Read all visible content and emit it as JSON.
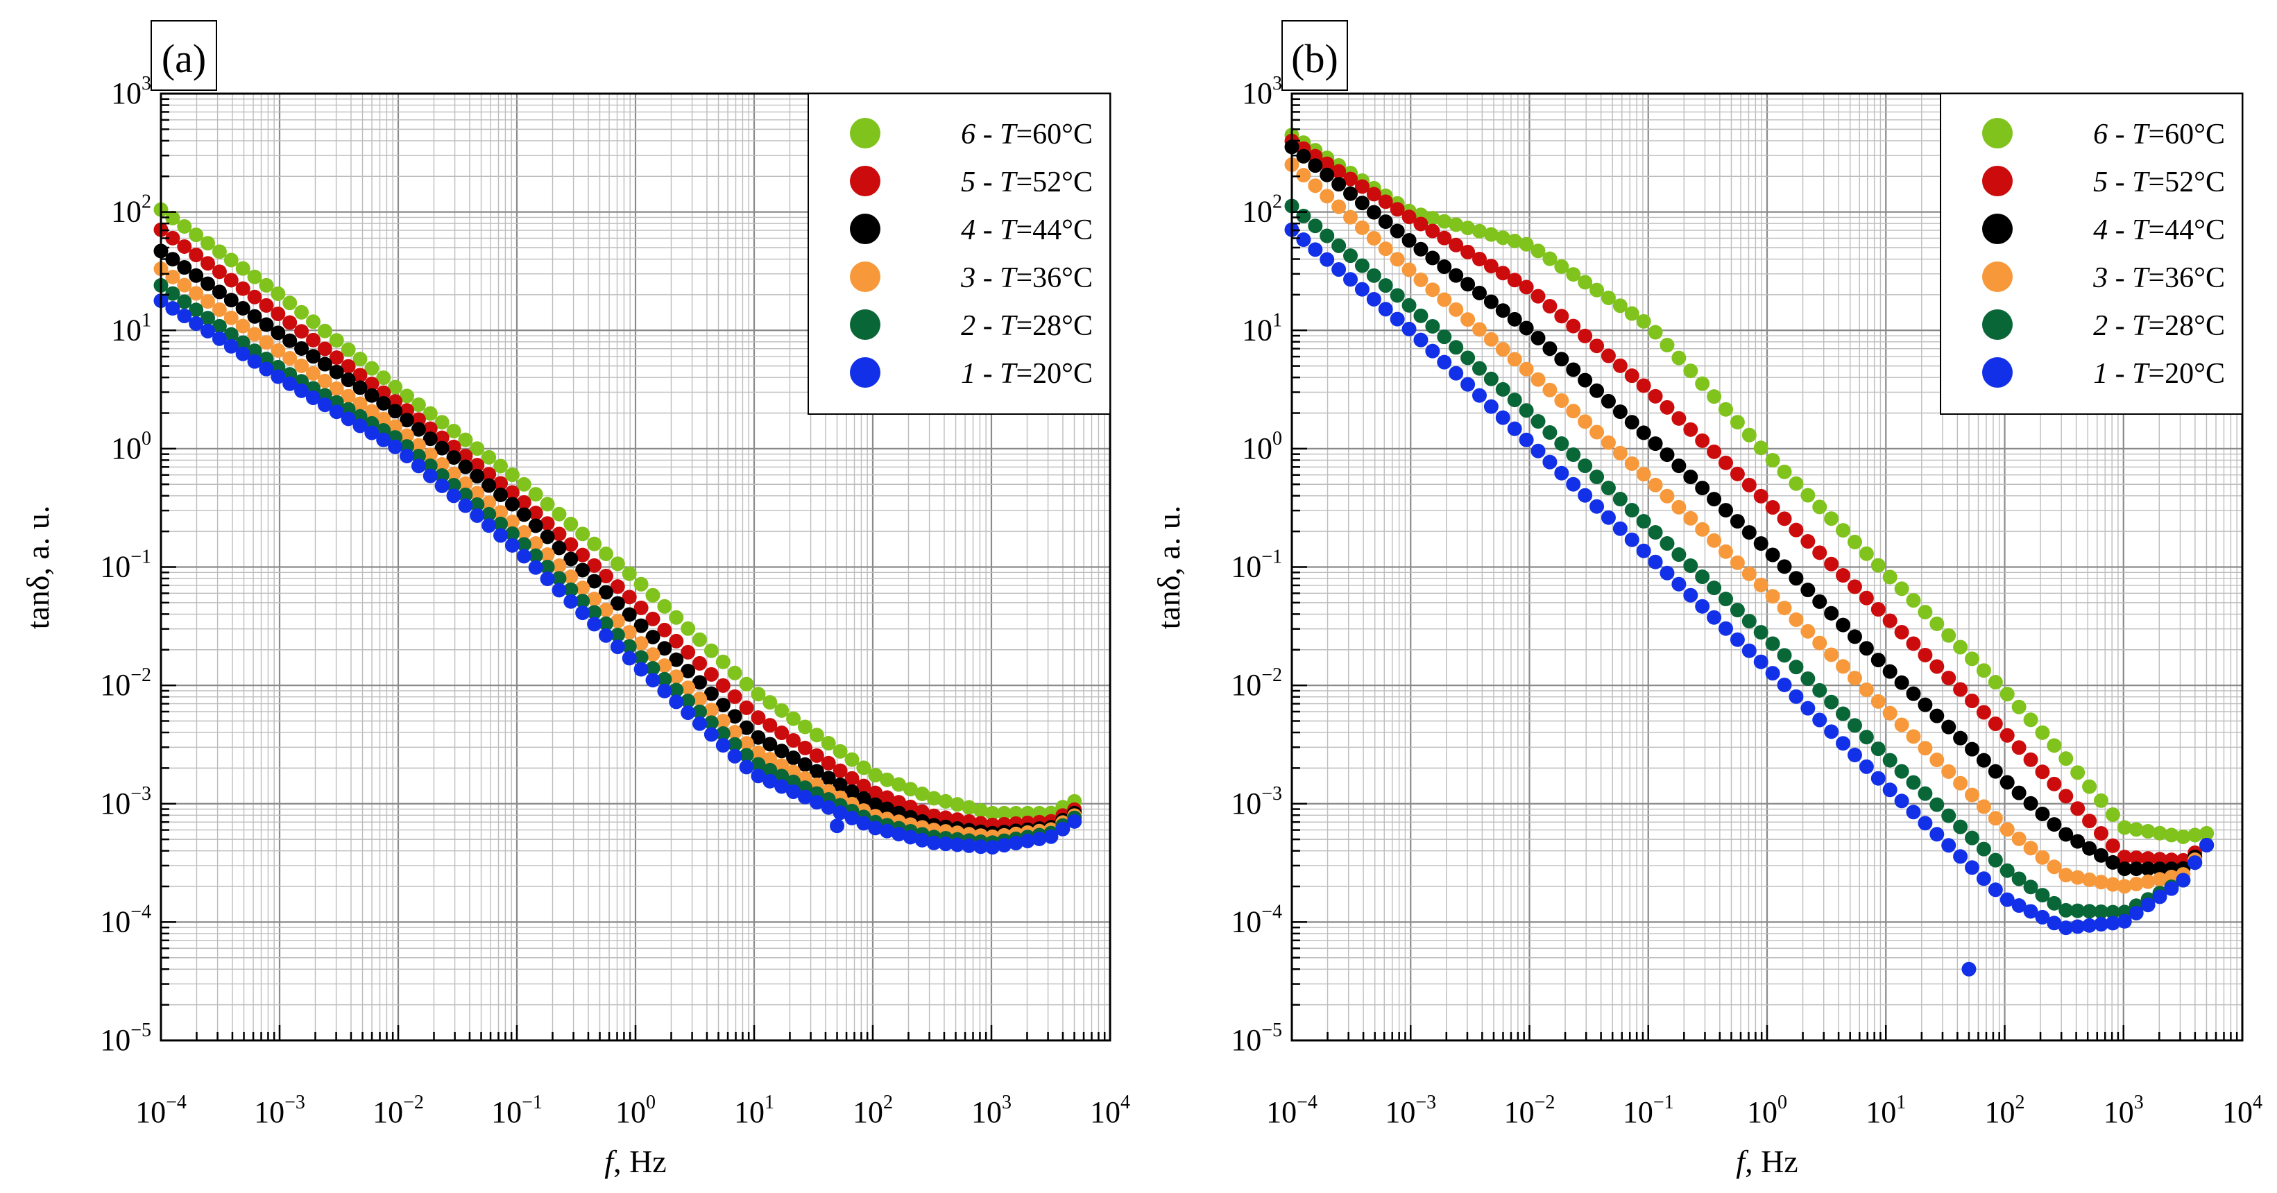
{
  "figure": {
    "x_label_italic": "f",
    "x_label_rest": ", Hz",
    "y_label": "tanδ, a. u."
  },
  "chart_data": [
    {
      "type": "scatter",
      "panel_label": "(a)",
      "xlabel": "f, Hz",
      "ylabel": "tanδ, a. u.",
      "xscale": "log",
      "yscale": "log",
      "xlim": [
        0.0001,
        10000
      ],
      "ylim": [
        1e-05,
        1000
      ],
      "x_ticks": [
        {
          "base": "10",
          "exp": "−4"
        },
        {
          "base": "10",
          "exp": "−3"
        },
        {
          "base": "10",
          "exp": "−2"
        },
        {
          "base": "10",
          "exp": "−1"
        },
        {
          "base": "10",
          "exp": "0"
        },
        {
          "base": "10",
          "exp": "1"
        },
        {
          "base": "10",
          "exp": "2"
        },
        {
          "base": "10",
          "exp": "3"
        },
        {
          "base": "10",
          "exp": "4"
        }
      ],
      "y_ticks": [
        {
          "base": "10",
          "exp": "−5"
        },
        {
          "base": "10",
          "exp": "−4"
        },
        {
          "base": "10",
          "exp": "−3"
        },
        {
          "base": "10",
          "exp": "−2"
        },
        {
          "base": "10",
          "exp": "−1"
        },
        {
          "base": "10",
          "exp": "0"
        },
        {
          "base": "10",
          "exp": "1"
        },
        {
          "base": "10",
          "exp": "2"
        },
        {
          "base": "10",
          "exp": "3"
        }
      ],
      "grid": true,
      "legend_position": "top-right",
      "legend": [
        {
          "num": "6",
          "sep": " - ",
          "var": "T",
          "val": "=60°C",
          "color": "#7fc31c"
        },
        {
          "num": "5",
          "sep": " - ",
          "var": "T",
          "val": "=52°C",
          "color": "#cc0c0c"
        },
        {
          "num": "4",
          "sep": " - ",
          "var": "T",
          "val": "=44°C",
          "color": "#000000"
        },
        {
          "num": "3",
          "sep": " - ",
          "var": "T",
          "val": "=36°C",
          "color": "#f7993a"
        },
        {
          "num": "2",
          "sep": " - ",
          "var": "T",
          "val": "=28°C",
          "color": "#096637"
        },
        {
          "num": "1",
          "sep": " - ",
          "var": "T",
          "val": "=20°C",
          "color": "#1230e8"
        }
      ],
      "series": [
        {
          "name": "6 - T=60°C",
          "color": "#7fc31c",
          "anchors_log10": [
            [
              -4,
              2.02
            ],
            [
              -3,
              1.3
            ],
            [
              -2,
              0.5
            ],
            [
              -1,
              -0.25
            ],
            [
              0,
              -1.1
            ],
            [
              1,
              -2.05
            ],
            [
              2,
              -2.75
            ],
            [
              2.5,
              -2.95
            ],
            [
              3,
              -3.08
            ],
            [
              3.5,
              -3.08
            ],
            [
              3.7,
              -2.98
            ]
          ]
        },
        {
          "name": "5 - T=52°C",
          "color": "#cc0c0c",
          "anchors_log10": [
            [
              -4,
              1.85
            ],
            [
              -3,
              1.13
            ],
            [
              -2,
              0.38
            ],
            [
              -1,
              -0.4
            ],
            [
              0,
              -1.3
            ],
            [
              1,
              -2.25
            ],
            [
              2,
              -2.9
            ],
            [
              2.5,
              -3.1
            ],
            [
              3,
              -3.18
            ],
            [
              3.5,
              -3.15
            ],
            [
              3.7,
              -3.05
            ]
          ]
        },
        {
          "name": "4 - T=44°C",
          "color": "#000000",
          "anchors_log10": [
            [
              -4,
              1.67
            ],
            [
              -3,
              0.97
            ],
            [
              -2,
              0.3
            ],
            [
              -1,
              -0.5
            ],
            [
              0,
              -1.45
            ],
            [
              1,
              -2.42
            ],
            [
              2,
              -3.0
            ],
            [
              2.5,
              -3.18
            ],
            [
              3,
              -3.25
            ],
            [
              3.5,
              -3.2
            ],
            [
              3.7,
              -3.08
            ]
          ]
        },
        {
          "name": "3 - T=36°C",
          "color": "#f7993a",
          "anchors_log10": [
            [
              -4,
              1.52
            ],
            [
              -3,
              0.82
            ],
            [
              -2,
              0.17
            ],
            [
              -1,
              -0.65
            ],
            [
              0,
              -1.6
            ],
            [
              1,
              -2.55
            ],
            [
              2,
              -3.1
            ],
            [
              2.5,
              -3.22
            ],
            [
              3,
              -3.28
            ],
            [
              3.5,
              -3.22
            ],
            [
              3.7,
              -3.1
            ]
          ]
        },
        {
          "name": "2 - T=28°C",
          "color": "#096637",
          "anchors_log10": [
            [
              -4,
              1.38
            ],
            [
              -3,
              0.68
            ],
            [
              -2,
              0.08
            ],
            [
              -1,
              -0.75
            ],
            [
              0,
              -1.72
            ],
            [
              1,
              -2.65
            ],
            [
              2,
              -3.15
            ],
            [
              2.5,
              -3.28
            ],
            [
              3,
              -3.33
            ],
            [
              3.5,
              -3.25
            ],
            [
              3.7,
              -3.12
            ]
          ]
        },
        {
          "name": "1 - T=20°C",
          "color": "#1230e8",
          "anchors_log10": [
            [
              -4,
              1.25
            ],
            [
              -3,
              0.6
            ],
            [
              -2,
              0.0
            ],
            [
              -1,
              -0.85
            ],
            [
              0,
              -1.82
            ],
            [
              1,
              -2.75
            ],
            [
              2,
              -3.2
            ],
            [
              2.5,
              -3.33
            ],
            [
              3,
              -3.37
            ],
            [
              3.5,
              -3.28
            ],
            [
              3.7,
              -3.15
            ]
          ]
        }
      ],
      "outliers": [
        {
          "series": "1 - T=20°C",
          "x": 50,
          "y": 0.00065
        }
      ]
    },
    {
      "type": "scatter",
      "panel_label": "(b)",
      "xlabel": "f, Hz",
      "ylabel": "tanδ, a. u.",
      "xscale": "log",
      "yscale": "log",
      "xlim": [
        0.0001,
        10000
      ],
      "ylim": [
        1e-05,
        1000
      ],
      "x_ticks": [
        {
          "base": "10",
          "exp": "−4"
        },
        {
          "base": "10",
          "exp": "−3"
        },
        {
          "base": "10",
          "exp": "−2"
        },
        {
          "base": "10",
          "exp": "−1"
        },
        {
          "base": "10",
          "exp": "0"
        },
        {
          "base": "10",
          "exp": "1"
        },
        {
          "base": "10",
          "exp": "2"
        },
        {
          "base": "10",
          "exp": "3"
        },
        {
          "base": "10",
          "exp": "4"
        }
      ],
      "y_ticks": [
        {
          "base": "10",
          "exp": "−5"
        },
        {
          "base": "10",
          "exp": "−4"
        },
        {
          "base": "10",
          "exp": "−3"
        },
        {
          "base": "10",
          "exp": "−2"
        },
        {
          "base": "10",
          "exp": "−1"
        },
        {
          "base": "10",
          "exp": "0"
        },
        {
          "base": "10",
          "exp": "1"
        },
        {
          "base": "10",
          "exp": "2"
        },
        {
          "base": "10",
          "exp": "3"
        }
      ],
      "grid": true,
      "legend_position": "top-right",
      "legend": [
        {
          "num": "6",
          "sep": " - ",
          "var": "T",
          "val": "=60°C",
          "color": "#7fc31c"
        },
        {
          "num": "5",
          "sep": " - ",
          "var": "T",
          "val": "=52°C",
          "color": "#cc0c0c"
        },
        {
          "num": "4",
          "sep": " - ",
          "var": "T",
          "val": "=44°C",
          "color": "#000000"
        },
        {
          "num": "3",
          "sep": " - ",
          "var": "T",
          "val": "=36°C",
          "color": "#f7993a"
        },
        {
          "num": "2",
          "sep": " - ",
          "var": "T",
          "val": "=28°C",
          "color": "#096637"
        },
        {
          "num": "1",
          "sep": " - ",
          "var": "T",
          "val": "=20°C",
          "color": "#1230e8"
        }
      ],
      "series": [
        {
          "name": "6 - T=60°C",
          "color": "#7fc31c",
          "anchors_log10": [
            [
              -4,
              2.65
            ],
            [
              -3,
              2.0
            ],
            [
              -2,
              1.72
            ],
            [
              -1,
              1.05
            ],
            [
              0,
              -0.05
            ],
            [
              1,
              -1.05
            ],
            [
              2,
              -2.05
            ],
            [
              2.5,
              -2.6
            ],
            [
              3,
              -3.2
            ],
            [
              3.5,
              -3.28
            ],
            [
              3.7,
              -3.25
            ]
          ]
        },
        {
          "name": "5 - T=52°C",
          "color": "#cc0c0c",
          "anchors_log10": [
            [
              -4,
              2.6
            ],
            [
              -3,
              1.95
            ],
            [
              -2,
              1.35
            ],
            [
              -1,
              0.5
            ],
            [
              0,
              -0.45
            ],
            [
              1,
              -1.42
            ],
            [
              2,
              -2.4
            ],
            [
              2.5,
              -2.92
            ],
            [
              3,
              -3.45
            ],
            [
              3.5,
              -3.48
            ],
            [
              3.7,
              -3.35
            ]
          ]
        },
        {
          "name": "4 - T=44°C",
          "color": "#000000",
          "anchors_log10": [
            [
              -4,
              2.55
            ],
            [
              -3,
              1.75
            ],
            [
              -2,
              1.0
            ],
            [
              -1,
              0.1
            ],
            [
              0,
              -0.85
            ],
            [
              1,
              -1.85
            ],
            [
              2,
              -2.8
            ],
            [
              2.5,
              -3.25
            ],
            [
              3,
              -3.55
            ],
            [
              3.5,
              -3.55
            ],
            [
              3.7,
              -3.35
            ]
          ]
        },
        {
          "name": "3 - T=36°C",
          "color": "#f7993a",
          "anchors_log10": [
            [
              -4,
              2.4
            ],
            [
              -3,
              1.5
            ],
            [
              -2,
              0.65
            ],
            [
              -1,
              -0.25
            ],
            [
              0,
              -1.2
            ],
            [
              1,
              -2.2
            ],
            [
              2,
              -3.2
            ],
            [
              2.5,
              -3.6
            ],
            [
              3,
              -3.7
            ],
            [
              3.5,
              -3.6
            ],
            [
              3.7,
              -3.35
            ]
          ]
        },
        {
          "name": "2 - T=28°C",
          "color": "#096637",
          "anchors_log10": [
            [
              -4,
              2.05
            ],
            [
              -3,
              1.2
            ],
            [
              -2,
              0.3
            ],
            [
              -1,
              -0.65
            ],
            [
              0,
              -1.6
            ],
            [
              1,
              -2.6
            ],
            [
              2,
              -3.55
            ],
            [
              2.5,
              -3.9
            ],
            [
              3,
              -3.92
            ],
            [
              3.5,
              -3.65
            ],
            [
              3.7,
              -3.35
            ]
          ]
        },
        {
          "name": "1 - T=20°C",
          "color": "#1230e8",
          "anchors_log10": [
            [
              -4,
              1.85
            ],
            [
              -3,
              1.0
            ],
            [
              -2,
              0.05
            ],
            [
              -1,
              -0.9
            ],
            [
              0,
              -1.85
            ],
            [
              1,
              -2.85
            ],
            [
              2,
              -3.8
            ],
            [
              2.5,
              -4.05
            ],
            [
              3,
              -4.0
            ],
            [
              3.5,
              -3.65
            ],
            [
              3.7,
              -3.35
            ]
          ]
        }
      ],
      "outliers": [
        {
          "series": "1 - T=20°C",
          "x": 50,
          "y": 4e-05
        }
      ]
    }
  ]
}
